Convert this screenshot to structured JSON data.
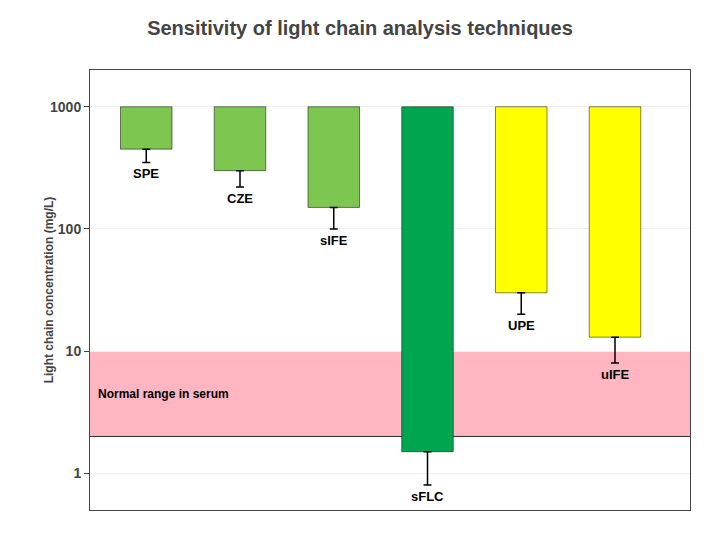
{
  "chart_data": {
    "type": "bar",
    "title": "Sensitivity of light chain analysis techniques",
    "ylabel": "Light chain concentration (mg/L)",
    "categories": [
      "SPE",
      "CZE",
      "sIFE",
      "sFLC",
      "UPE",
      "uIFE"
    ],
    "values": [
      1000,
      1000,
      1000,
      1000,
      1000,
      1000
    ],
    "bottoms": [
      450,
      300,
      150,
      1.5,
      30,
      13
    ],
    "error_low": [
      350,
      220,
      100,
      0.8,
      20,
      8
    ],
    "colors": [
      "#7DC750",
      "#7DC750",
      "#7DC750",
      "#00A550",
      "#FFFF00",
      "#FFFF00"
    ],
    "log": "y",
    "ylim": [
      0.5,
      2000
    ],
    "yticks": [
      1,
      10,
      100,
      1000
    ],
    "grid": true,
    "tick_labels": "y",
    "bands": [
      {
        "range": [
          2,
          10
        ],
        "color": "#FFB6C1",
        "label": "Normal range in serum"
      }
    ]
  }
}
